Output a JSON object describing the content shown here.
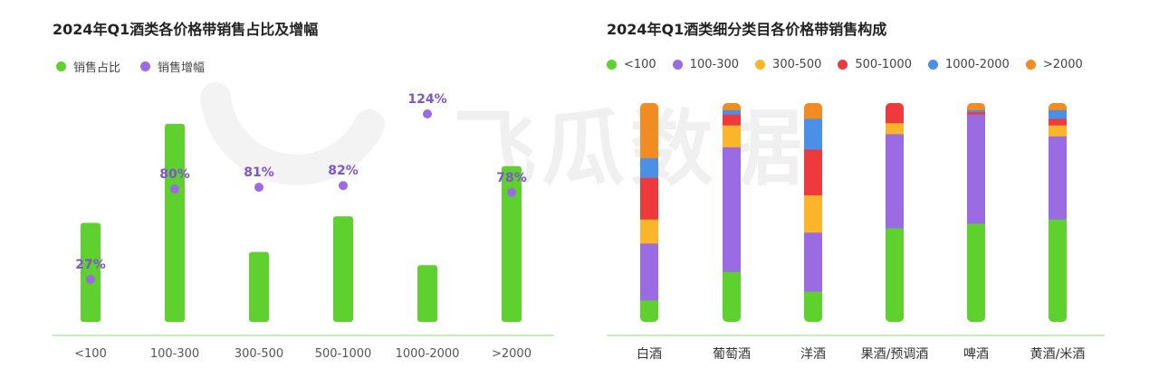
{
  "watermark_text": "飞瓜数据",
  "colors": {
    "share": "#5fd12e",
    "growth": "#9b6be3",
    "growth_label": "#7e55cf",
    "axis_line": "#b8e6a2",
    "tick_label": "#555555",
    "price_bands": [
      "#5fd12e",
      "#9b6be3",
      "#fbb52b",
      "#ee3a3c",
      "#4a8fe8",
      "#f08c22"
    ]
  },
  "chart_data": [
    {
      "type": "bar",
      "title": "2024年Q1酒类各价格带销售占比及增幅",
      "categories": [
        "<100",
        "100-300",
        "300-500",
        "500-1000",
        "1000-2000",
        ">2000"
      ],
      "series": [
        {
          "name": "销售占比",
          "values": [
            7.5,
            15,
            5.3,
            8,
            4.3,
            11.8
          ]
        },
        {
          "name": "销售增幅",
          "values": [
            27,
            80,
            81,
            82,
            124,
            78
          ],
          "value_labels": [
            "27%",
            "80%",
            "81%",
            "82%",
            "124%",
            "78%"
          ]
        }
      ],
      "grid": false,
      "legend": "top-left"
    },
    {
      "type": "bar",
      "stacked": true,
      "title": "2024年Q1酒类细分类目各价格带销售构成",
      "categories": [
        "白酒",
        "葡萄酒",
        "洋酒",
        "果酒/预调酒",
        "啤酒",
        "黄酒/米酒"
      ],
      "series": [
        {
          "name": "<100",
          "values": [
            10,
            23,
            14,
            43,
            45,
            47
          ]
        },
        {
          "name": "100-300",
          "values": [
            26,
            57,
            27,
            43,
            50,
            38
          ]
        },
        {
          "name": "300-500",
          "values": [
            11,
            10,
            17,
            5,
            0,
            5
          ]
        },
        {
          "name": "500-1000",
          "values": [
            19,
            5,
            21,
            9,
            1,
            3
          ]
        },
        {
          "name": "1000-2000",
          "values": [
            9,
            2,
            14,
            0,
            1,
            4
          ]
        },
        {
          "name": ">2000",
          "values": [
            25,
            3,
            7,
            0,
            3,
            3
          ]
        }
      ],
      "ylim": [
        0,
        100
      ],
      "grid": false,
      "legend": "top-left"
    }
  ]
}
